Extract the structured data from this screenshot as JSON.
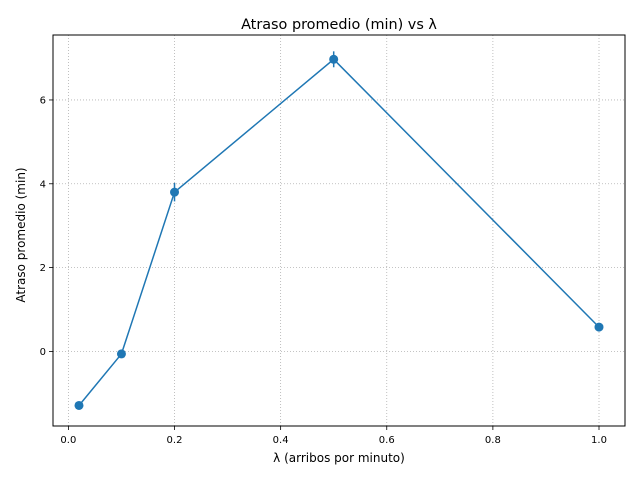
{
  "chart_data": {
    "type": "line",
    "title": "Atraso promedio (min) vs λ",
    "xlabel": "λ (arribos por minuto)",
    "ylabel": "Atraso promedio (min)",
    "xlim": [
      -0.029,
      1.049
    ],
    "ylim": [
      -1.78,
      7.55
    ],
    "x_ticks": [
      0.0,
      0.2,
      0.4,
      0.6,
      0.8,
      1.0
    ],
    "x_tick_labels": [
      "0.0",
      "0.2",
      "0.4",
      "0.6",
      "0.8",
      "1.0"
    ],
    "y_ticks": [
      0,
      2,
      4,
      6
    ],
    "y_tick_labels": [
      "0",
      "2",
      "4",
      "6"
    ],
    "grid": true,
    "series": [
      {
        "color": "#1f77b4",
        "marker": "circle",
        "x": [
          0.02,
          0.1,
          0.2,
          0.5,
          1.0
        ],
        "y": [
          -1.29,
          -0.06,
          3.8,
          6.97,
          0.58
        ],
        "yerr": [
          0.05,
          0.06,
          0.22,
          0.19,
          0.06
        ]
      }
    ]
  }
}
